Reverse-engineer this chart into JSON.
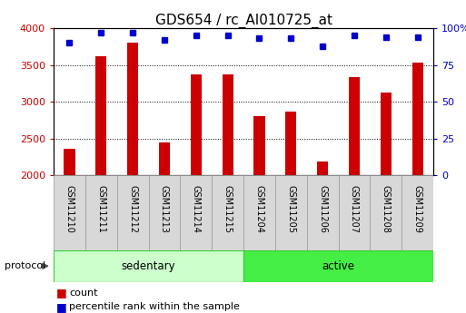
{
  "title": "GDS654 / rc_AI010725_at",
  "samples": [
    "GSM11210",
    "GSM11211",
    "GSM11212",
    "GSM11213",
    "GSM11214",
    "GSM11215",
    "GSM11204",
    "GSM11205",
    "GSM11206",
    "GSM11207",
    "GSM11208",
    "GSM11209"
  ],
  "counts": [
    2360,
    3620,
    3800,
    2450,
    3370,
    3370,
    2800,
    2860,
    2190,
    3340,
    3130,
    3530
  ],
  "percentile_ranks": [
    90,
    97,
    97,
    92,
    95,
    95,
    93,
    93,
    88,
    95,
    94,
    94
  ],
  "groups": [
    {
      "name": "sedentary",
      "start": 0,
      "end": 6
    },
    {
      "name": "active",
      "start": 6,
      "end": 12
    }
  ],
  "ylim_left": [
    2000,
    4000
  ],
  "ylim_right": [
    0,
    100
  ],
  "yticks_left": [
    2000,
    2500,
    3000,
    3500,
    4000
  ],
  "yticks_right": [
    0,
    25,
    50,
    75,
    100
  ],
  "bar_color": "#cc0000",
  "dot_color": "#0000cc",
  "group_colors": [
    "#ccffcc",
    "#44ee44"
  ],
  "label_bg": "#d8d8d8",
  "bg_color": "#ffffff",
  "grid_color": "#000000",
  "title_fontsize": 11,
  "tick_fontsize": 8,
  "label_fontsize": 7,
  "legend_label_count": "count",
  "legend_label_percentile": "percentile rank within the sample",
  "protocol_label": "protocol"
}
